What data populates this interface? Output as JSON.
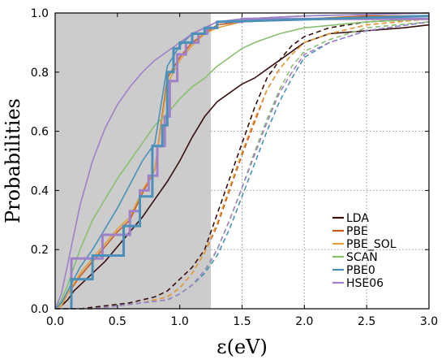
{
  "chart_data": {
    "type": "line",
    "xlabel": "ε(eV)",
    "ylabel": "Probabilities",
    "xlim": [
      0,
      3.0
    ],
    "ylim": [
      0,
      1.0
    ],
    "xticks": [
      "0.0",
      "0.5",
      "1.0",
      "1.5",
      "2.0",
      "2.5",
      "3.0"
    ],
    "yticks": [
      "0.0",
      "0.2",
      "0.4",
      "0.6",
      "0.8",
      "1.0"
    ],
    "shaded_region": {
      "x_from": 0,
      "x_to": 1.25,
      "color": "#cccccc"
    },
    "grid": "dotted, right of shaded region",
    "legend_position": "bottom-right",
    "series": [
      {
        "name": "LDA",
        "color": "#3a0f0f",
        "solid": [
          [
            0,
            0
          ],
          [
            0.05,
            0.01
          ],
          [
            0.1,
            0.03
          ],
          [
            0.15,
            0.06
          ],
          [
            0.2,
            0.08
          ],
          [
            0.3,
            0.12
          ],
          [
            0.4,
            0.16
          ],
          [
            0.5,
            0.21
          ],
          [
            0.6,
            0.26
          ],
          [
            0.7,
            0.31
          ],
          [
            0.8,
            0.37
          ],
          [
            0.9,
            0.43
          ],
          [
            1.0,
            0.5
          ],
          [
            1.1,
            0.58
          ],
          [
            1.2,
            0.65
          ],
          [
            1.3,
            0.7
          ],
          [
            1.4,
            0.73
          ],
          [
            1.5,
            0.76
          ],
          [
            1.6,
            0.78
          ],
          [
            1.7,
            0.81
          ],
          [
            1.8,
            0.84
          ],
          [
            1.9,
            0.87
          ],
          [
            2.0,
            0.9
          ],
          [
            2.2,
            0.93
          ],
          [
            2.5,
            0.94
          ],
          [
            2.8,
            0.95
          ],
          [
            3.0,
            0.96
          ]
        ],
        "dashed": [
          [
            0,
            0
          ],
          [
            0.2,
            0
          ],
          [
            0.4,
            0.01
          ],
          [
            0.6,
            0.02
          ],
          [
            0.8,
            0.04
          ],
          [
            0.9,
            0.06
          ],
          [
            1.0,
            0.1
          ],
          [
            1.1,
            0.14
          ],
          [
            1.2,
            0.2
          ],
          [
            1.3,
            0.32
          ],
          [
            1.4,
            0.44
          ],
          [
            1.5,
            0.56
          ],
          [
            1.6,
            0.68
          ],
          [
            1.7,
            0.78
          ],
          [
            1.8,
            0.84
          ],
          [
            1.9,
            0.89
          ],
          [
            2.0,
            0.92
          ],
          [
            2.2,
            0.95
          ],
          [
            2.5,
            0.97
          ],
          [
            3.0,
            0.98
          ]
        ]
      },
      {
        "name": "PBE",
        "color": "#c85a1c",
        "solid": [
          [
            0,
            0
          ],
          [
            0.05,
            0.01
          ],
          [
            0.1,
            0.05
          ],
          [
            0.2,
            0.11
          ],
          [
            0.3,
            0.16
          ],
          [
            0.4,
            0.21
          ],
          [
            0.5,
            0.26
          ],
          [
            0.6,
            0.3
          ],
          [
            0.7,
            0.39
          ],
          [
            0.8,
            0.47
          ],
          [
            0.9,
            0.78
          ],
          [
            1.0,
            0.85
          ],
          [
            1.1,
            0.9
          ],
          [
            1.2,
            0.93
          ],
          [
            1.3,
            0.96
          ],
          [
            1.5,
            0.97
          ],
          [
            2.0,
            0.98
          ],
          [
            2.5,
            0.99
          ],
          [
            3.0,
            0.99
          ]
        ],
        "dashed": [
          [
            0,
            0
          ],
          [
            0.3,
            0
          ],
          [
            0.5,
            0.01
          ],
          [
            0.7,
            0.02
          ],
          [
            0.9,
            0.04
          ],
          [
            1.0,
            0.07
          ],
          [
            1.1,
            0.12
          ],
          [
            1.2,
            0.19
          ],
          [
            1.3,
            0.28
          ],
          [
            1.4,
            0.4
          ],
          [
            1.5,
            0.52
          ],
          [
            1.6,
            0.63
          ],
          [
            1.7,
            0.74
          ],
          [
            1.8,
            0.81
          ],
          [
            1.9,
            0.86
          ],
          [
            2.0,
            0.9
          ],
          [
            2.2,
            0.93
          ],
          [
            2.5,
            0.96
          ],
          [
            3.0,
            0.98
          ]
        ]
      },
      {
        "name": "PBE_SOL",
        "color": "#e0a040",
        "solid": [
          [
            0,
            0
          ],
          [
            0.05,
            0.01
          ],
          [
            0.1,
            0.05
          ],
          [
            0.2,
            0.12
          ],
          [
            0.3,
            0.17
          ],
          [
            0.4,
            0.22
          ],
          [
            0.5,
            0.27
          ],
          [
            0.6,
            0.31
          ],
          [
            0.7,
            0.4
          ],
          [
            0.8,
            0.47
          ],
          [
            0.9,
            0.76
          ],
          [
            1.0,
            0.84
          ],
          [
            1.1,
            0.89
          ],
          [
            1.2,
            0.93
          ],
          [
            1.3,
            0.95
          ],
          [
            1.5,
            0.97
          ],
          [
            2.0,
            0.98
          ],
          [
            3.0,
            0.99
          ]
        ],
        "dashed": [
          [
            0,
            0
          ],
          [
            0.3,
            0
          ],
          [
            0.5,
            0.01
          ],
          [
            0.7,
            0.02
          ],
          [
            0.9,
            0.04
          ],
          [
            1.0,
            0.07
          ],
          [
            1.1,
            0.12
          ],
          [
            1.2,
            0.19
          ],
          [
            1.3,
            0.29
          ],
          [
            1.4,
            0.41
          ],
          [
            1.5,
            0.53
          ],
          [
            1.6,
            0.64
          ],
          [
            1.7,
            0.74
          ],
          [
            1.8,
            0.81
          ],
          [
            1.9,
            0.86
          ],
          [
            2.0,
            0.9
          ],
          [
            2.2,
            0.93
          ],
          [
            2.5,
            0.96
          ],
          [
            3.0,
            0.98
          ]
        ]
      },
      {
        "name": "SCAN",
        "color": "#88c070",
        "solid": [
          [
            0,
            0
          ],
          [
            0.05,
            0.03
          ],
          [
            0.1,
            0.08
          ],
          [
            0.2,
            0.2
          ],
          [
            0.3,
            0.3
          ],
          [
            0.4,
            0.37
          ],
          [
            0.5,
            0.44
          ],
          [
            0.6,
            0.5
          ],
          [
            0.7,
            0.56
          ],
          [
            0.8,
            0.62
          ],
          [
            0.9,
            0.66
          ],
          [
            1.0,
            0.71
          ],
          [
            1.1,
            0.75
          ],
          [
            1.2,
            0.78
          ],
          [
            1.3,
            0.82
          ],
          [
            1.4,
            0.85
          ],
          [
            1.5,
            0.88
          ],
          [
            1.6,
            0.9
          ],
          [
            1.8,
            0.93
          ],
          [
            2.0,
            0.95
          ],
          [
            2.5,
            0.97
          ],
          [
            3.0,
            0.98
          ]
        ],
        "dashed": [
          [
            0,
            0
          ],
          [
            0.3,
            0
          ],
          [
            0.5,
            0.01
          ],
          [
            0.7,
            0.02
          ],
          [
            0.9,
            0.03
          ],
          [
            1.0,
            0.05
          ],
          [
            1.1,
            0.08
          ],
          [
            1.2,
            0.12
          ],
          [
            1.3,
            0.2
          ],
          [
            1.4,
            0.3
          ],
          [
            1.5,
            0.41
          ],
          [
            1.6,
            0.53
          ],
          [
            1.7,
            0.64
          ],
          [
            1.8,
            0.74
          ],
          [
            1.9,
            0.82
          ],
          [
            2.0,
            0.87
          ],
          [
            2.2,
            0.91
          ],
          [
            2.5,
            0.95
          ],
          [
            3.0,
            0.97
          ]
        ]
      },
      {
        "name": "PBE0",
        "color": "#4a90b8",
        "solid": [
          [
            0,
            0
          ],
          [
            0.05,
            0.02
          ],
          [
            0.1,
            0.06
          ],
          [
            0.2,
            0.14
          ],
          [
            0.3,
            0.2
          ],
          [
            0.4,
            0.27
          ],
          [
            0.5,
            0.34
          ],
          [
            0.6,
            0.42
          ],
          [
            0.7,
            0.5
          ],
          [
            0.8,
            0.56
          ],
          [
            0.9,
            0.82
          ],
          [
            1.0,
            0.89
          ],
          [
            1.1,
            0.93
          ],
          [
            1.2,
            0.95
          ],
          [
            1.3,
            0.97
          ],
          [
            1.5,
            0.98
          ],
          [
            2.0,
            0.99
          ],
          [
            3.0,
            1.0
          ]
        ],
        "dashed": [
          [
            0,
            0
          ],
          [
            0.3,
            0
          ],
          [
            0.5,
            0.01
          ],
          [
            0.7,
            0.02
          ],
          [
            0.9,
            0.03
          ],
          [
            1.0,
            0.05
          ],
          [
            1.1,
            0.08
          ],
          [
            1.2,
            0.12
          ],
          [
            1.3,
            0.18
          ],
          [
            1.4,
            0.27
          ],
          [
            1.5,
            0.38
          ],
          [
            1.6,
            0.49
          ],
          [
            1.7,
            0.6
          ],
          [
            1.8,
            0.7
          ],
          [
            1.9,
            0.78
          ],
          [
            2.0,
            0.85
          ],
          [
            2.2,
            0.9
          ],
          [
            2.5,
            0.94
          ],
          [
            3.0,
            0.97
          ]
        ]
      },
      {
        "name": "HSE06",
        "color": "#a080c8",
        "solid": [
          [
            0,
            0
          ],
          [
            0.05,
            0.05
          ],
          [
            0.1,
            0.15
          ],
          [
            0.2,
            0.35
          ],
          [
            0.3,
            0.5
          ],
          [
            0.4,
            0.61
          ],
          [
            0.5,
            0.69
          ],
          [
            0.6,
            0.75
          ],
          [
            0.7,
            0.8
          ],
          [
            0.8,
            0.84
          ],
          [
            0.9,
            0.87
          ],
          [
            1.0,
            0.9
          ],
          [
            1.1,
            0.93
          ],
          [
            1.2,
            0.95
          ],
          [
            1.3,
            0.97
          ],
          [
            1.5,
            0.98
          ],
          [
            2.0,
            0.99
          ],
          [
            3.0,
            1.0
          ]
        ],
        "dashed": [
          [
            0,
            0
          ],
          [
            0.3,
            0
          ],
          [
            0.5,
            0.01
          ],
          [
            0.7,
            0.02
          ],
          [
            0.9,
            0.03
          ],
          [
            1.0,
            0.05
          ],
          [
            1.1,
            0.08
          ],
          [
            1.2,
            0.13
          ],
          [
            1.3,
            0.2
          ],
          [
            1.4,
            0.3
          ],
          [
            1.5,
            0.41
          ],
          [
            1.6,
            0.52
          ],
          [
            1.7,
            0.63
          ],
          [
            1.8,
            0.73
          ],
          [
            1.9,
            0.8
          ],
          [
            2.0,
            0.86
          ],
          [
            2.2,
            0.9
          ],
          [
            2.5,
            0.94
          ],
          [
            3.0,
            0.97
          ]
        ]
      }
    ],
    "thick_step_series": [
      {
        "name": "HSE06",
        "color": "#a080c8",
        "points": [
          [
            0.13,
            0.0
          ],
          [
            0.13,
            0.17
          ],
          [
            0.38,
            0.17
          ],
          [
            0.38,
            0.25
          ],
          [
            0.6,
            0.25
          ],
          [
            0.6,
            0.33
          ],
          [
            0.68,
            0.33
          ],
          [
            0.68,
            0.4
          ],
          [
            0.75,
            0.4
          ],
          [
            0.75,
            0.45
          ],
          [
            0.82,
            0.45
          ],
          [
            0.82,
            0.55
          ],
          [
            0.88,
            0.55
          ],
          [
            0.88,
            0.65
          ],
          [
            0.92,
            0.65
          ],
          [
            0.92,
            0.77
          ],
          [
            0.98,
            0.77
          ],
          [
            0.98,
            0.86
          ],
          [
            1.05,
            0.86
          ],
          [
            1.05,
            0.9
          ],
          [
            1.15,
            0.9
          ],
          [
            1.15,
            0.93
          ],
          [
            1.22,
            0.93
          ],
          [
            1.22,
            0.95
          ],
          [
            1.3,
            0.95
          ],
          [
            1.3,
            0.97
          ],
          [
            1.5,
            0.97
          ],
          [
            1.5,
            0.98
          ],
          [
            3.0,
            0.98
          ]
        ]
      },
      {
        "name": "PBE0",
        "color": "#4a90b8",
        "points": [
          [
            0.13,
            0.0
          ],
          [
            0.13,
            0.1
          ],
          [
            0.3,
            0.1
          ],
          [
            0.3,
            0.18
          ],
          [
            0.55,
            0.18
          ],
          [
            0.55,
            0.28
          ],
          [
            0.68,
            0.28
          ],
          [
            0.68,
            0.38
          ],
          [
            0.78,
            0.38
          ],
          [
            0.78,
            0.55
          ],
          [
            0.86,
            0.55
          ],
          [
            0.86,
            0.62
          ],
          [
            0.9,
            0.62
          ],
          [
            0.9,
            0.8
          ],
          [
            0.95,
            0.8
          ],
          [
            0.95,
            0.88
          ],
          [
            1.0,
            0.88
          ],
          [
            1.0,
            0.9
          ],
          [
            1.1,
            0.9
          ],
          [
            1.1,
            0.93
          ],
          [
            1.2,
            0.93
          ],
          [
            1.2,
            0.95
          ],
          [
            1.3,
            0.95
          ],
          [
            1.3,
            0.97
          ],
          [
            3.0,
            0.99
          ]
        ]
      }
    ]
  }
}
